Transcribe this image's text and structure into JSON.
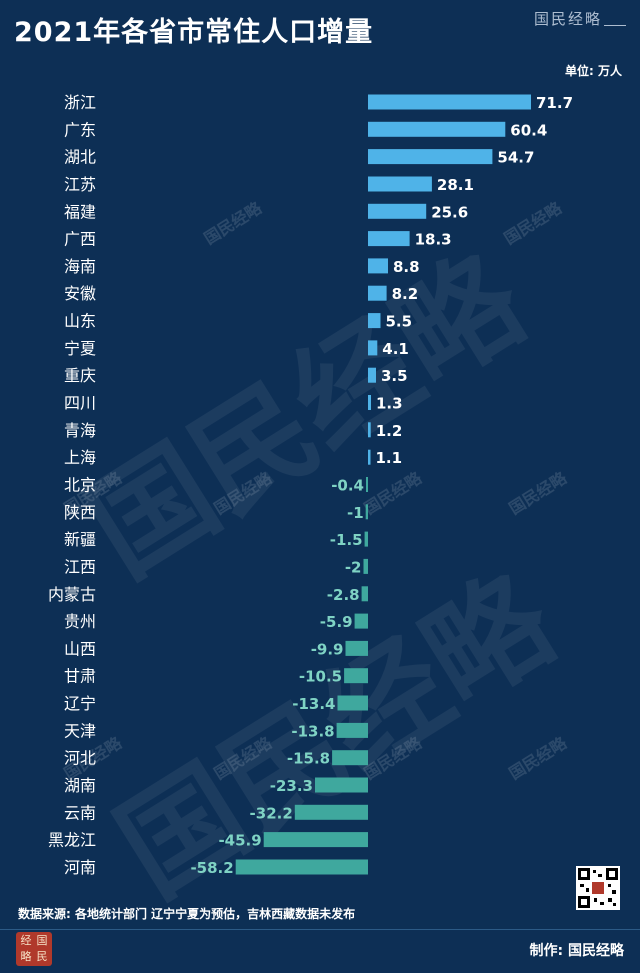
{
  "header": {
    "title": "2021年各省市常住人口增量",
    "brand": "国民经略",
    "unit": "单位: 万人"
  },
  "footer": {
    "source": "数据来源: 各地统计部门 辽宁宁夏为预估，吉林西藏数据未发布",
    "maker": "制作: 国民经略",
    "seal_chars": [
      "经",
      "国",
      "略",
      "民"
    ]
  },
  "watermark": {
    "text": "国民经略"
  },
  "colors": {
    "background": "#0d2f55",
    "positive": "#4fb3e8",
    "negative": "#3fa89e"
  },
  "chart_data": {
    "type": "bar",
    "orientation": "horizontal",
    "categories": [
      "浙江",
      "广东",
      "湖北",
      "江苏",
      "福建",
      "广西",
      "海南",
      "安徽",
      "山东",
      "宁夏",
      "重庆",
      "四川",
      "青海",
      "上海",
      "北京",
      "陕西",
      "新疆",
      "江西",
      "内蒙古",
      "贵州",
      "山西",
      "甘肃",
      "辽宁",
      "天津",
      "河北",
      "湖南",
      "云南",
      "黑龙江",
      "河南"
    ],
    "values": [
      71.7,
      60.4,
      54.7,
      28.1,
      25.6,
      18.3,
      8.8,
      8.2,
      5.5,
      4.1,
      3.5,
      1.3,
      1.2,
      1.1,
      -0.4,
      -1,
      -1.5,
      -2,
      -2.8,
      -5.9,
      -9.9,
      -10.5,
      -13.4,
      -13.8,
      -15.8,
      -23.3,
      -32.2,
      -45.9,
      -58.2
    ],
    "value_labels": [
      "71.7",
      "60.4",
      "54.7",
      "28.1",
      "25.6",
      "18.3",
      "8.8",
      "8.2",
      "5.5",
      "4.1",
      "3.5",
      "1.3",
      "1.2",
      "1.1",
      "-0.4",
      "-1",
      "-1.5",
      "-2",
      "-2.8",
      "-5.9",
      "-9.9",
      "-10.5",
      "-13.4",
      "-13.8",
      "-15.8",
      "-23.3",
      "-32.2",
      "-45.9",
      "-58.2"
    ],
    "xlim": [
      -58.2,
      71.7
    ],
    "grid": false,
    "legend": "none"
  }
}
